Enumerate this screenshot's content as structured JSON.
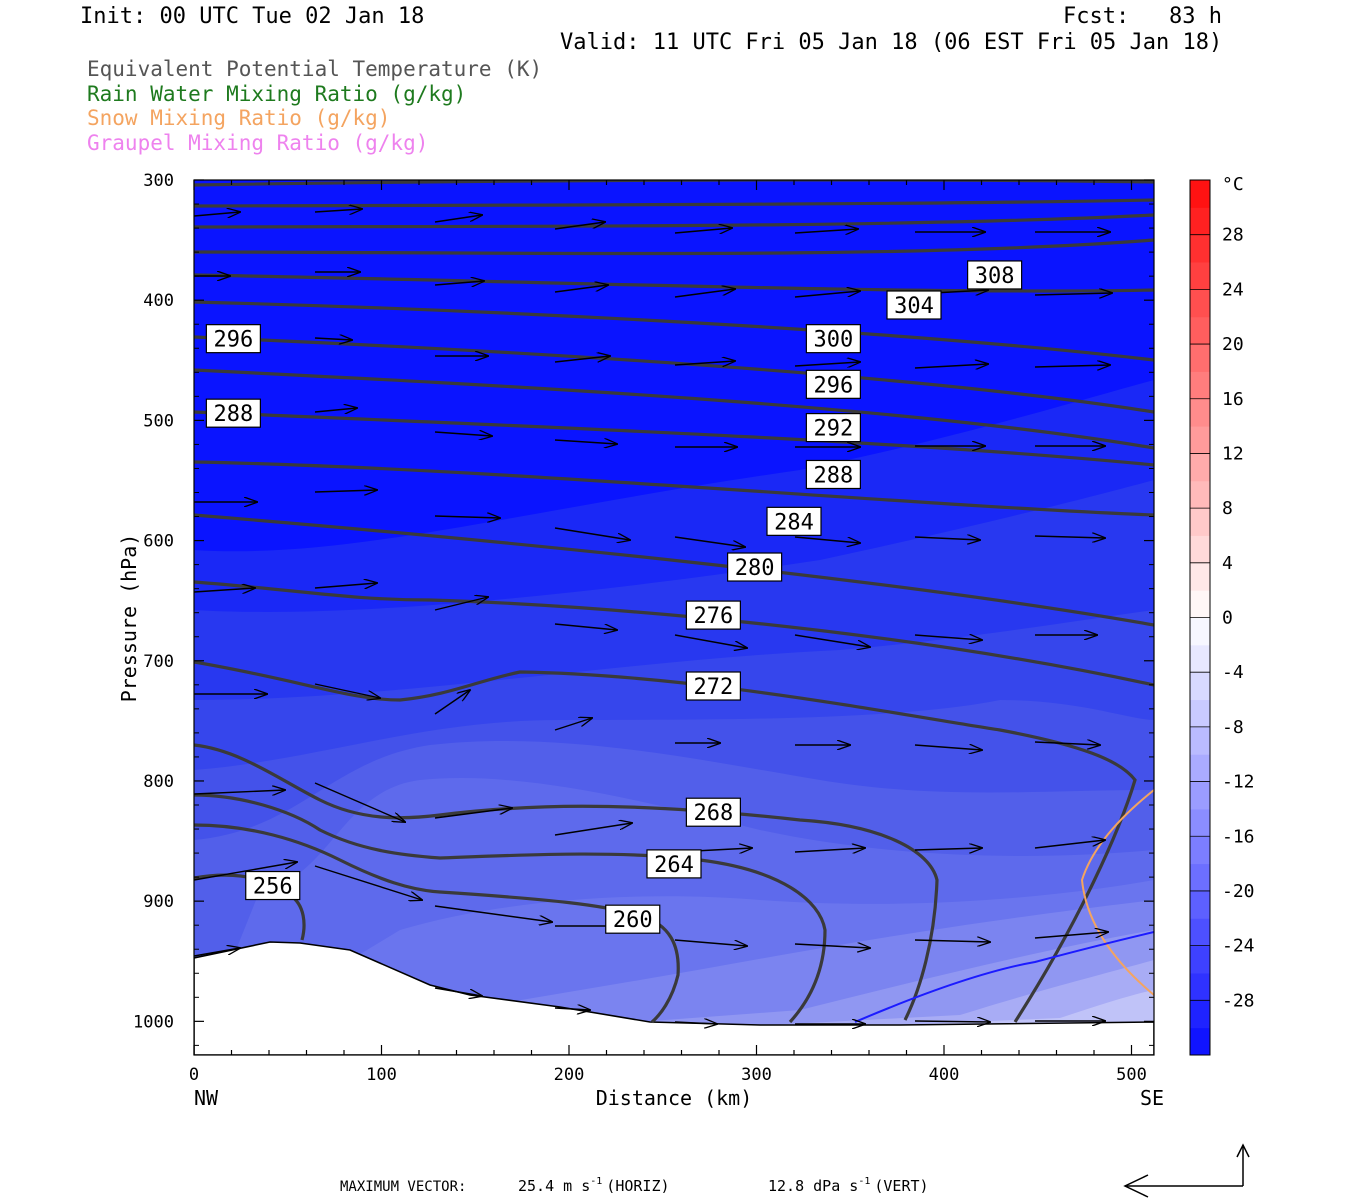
{
  "header": {
    "init": "Init: 00 UTC Tue 02 Jan 18",
    "fcst": "Fcst:   83 h",
    "valid": "Valid: 11 UTC Fri 05 Jan 18 (06 EST Fri 05 Jan 18)"
  },
  "legend": [
    {
      "label": "Equivalent Potential Temperature (K)",
      "color": "#555555"
    },
    {
      "label": "Rain Water Mixing Ratio (g/kg)",
      "color": "#1e7a1e"
    },
    {
      "label": "Snow Mixing Ratio (g/kg)",
      "color": "#f4a460"
    },
    {
      "label": "Graupel Mixing Ratio (g/kg)",
      "color": "#ee82ee"
    }
  ],
  "footer": {
    "max_vector": "MAXIMUM VECTOR:",
    "horiz_value": "25.4 m s",
    "horiz_exp": "-1",
    "horiz_label": "(HORIZ)",
    "vert_value": "12.8 dPa s",
    "vert_exp": "-1",
    "vert_label": "(VERT)"
  },
  "chart_data": {
    "type": "cross-section",
    "xlabel": "Distance (km)",
    "ylabel": "Pressure (hPa)",
    "xlim": [
      0,
      512
    ],
    "ylim": [
      1028,
      300
    ],
    "x_ticks": [
      0,
      100,
      200,
      300,
      400,
      500
    ],
    "y_ticks": [
      300,
      400,
      500,
      600,
      700,
      800,
      900,
      1000
    ],
    "x_end_labels": {
      "left": "NW",
      "right": "SE"
    },
    "colorbar": {
      "unit": "°C",
      "labels": [
        28,
        24,
        20,
        16,
        12,
        8,
        4,
        0,
        -4,
        -8,
        -12,
        -16,
        -20,
        -24,
        -28
      ],
      "range": [
        -32,
        32
      ]
    },
    "contour_labels": [
      {
        "text": "308",
        "x": 427,
        "p": 379
      },
      {
        "text": "304",
        "x": 384,
        "p": 404
      },
      {
        "text": "300",
        "x": 341,
        "p": 432
      },
      {
        "text": "296",
        "x": 341,
        "p": 470
      },
      {
        "text": "296",
        "x": 21,
        "p": 432
      },
      {
        "text": "292",
        "x": 341,
        "p": 506
      },
      {
        "text": "288",
        "x": 341,
        "p": 545
      },
      {
        "text": "288",
        "x": 21,
        "p": 494
      },
      {
        "text": "284",
        "x": 320,
        "p": 584
      },
      {
        "text": "280",
        "x": 299,
        "p": 622
      },
      {
        "text": "276",
        "x": 277,
        "p": 662
      },
      {
        "text": "272",
        "x": 277,
        "p": 721
      },
      {
        "text": "268",
        "x": 277,
        "p": 826
      },
      {
        "text": "264",
        "x": 256,
        "p": 869
      },
      {
        "text": "260",
        "x": 234,
        "p": 915
      },
      {
        "text": "256",
        "x": 42,
        "p": 887
      }
    ]
  }
}
